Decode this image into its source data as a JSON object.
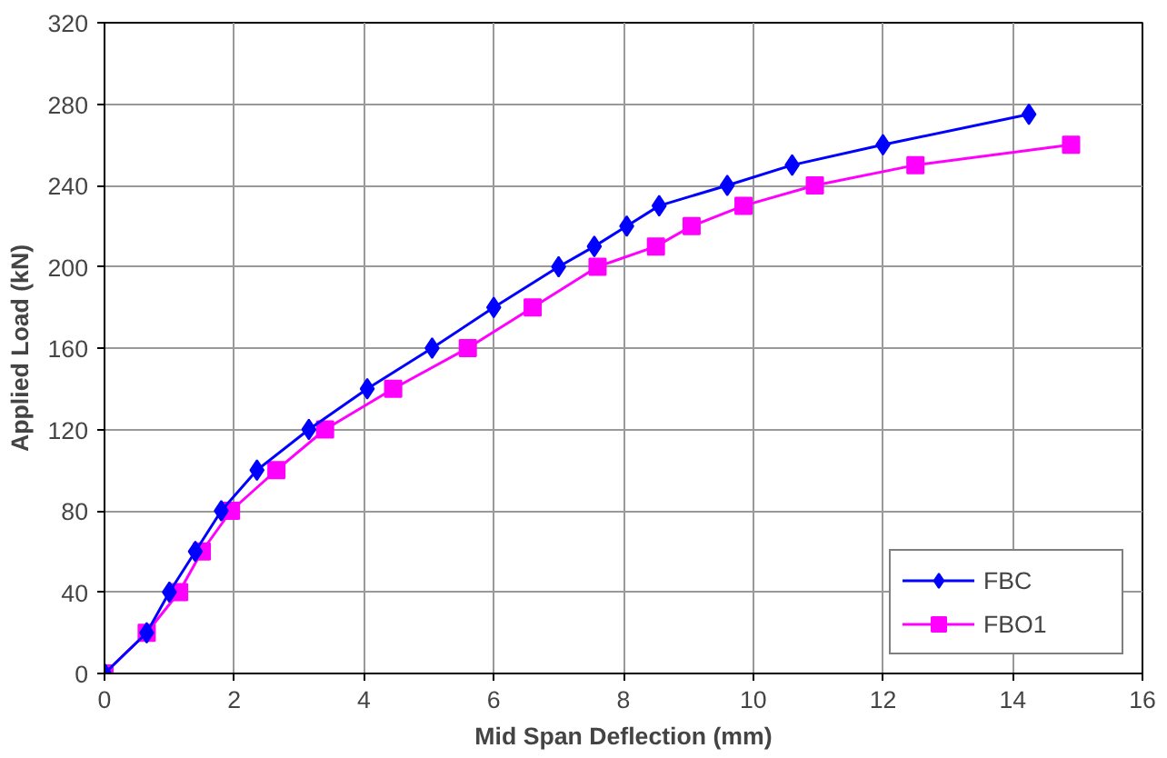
{
  "chart_data": {
    "type": "line",
    "xlabel": "Mid Span Deflection (mm)",
    "ylabel": "Applied Load (kN)",
    "xlim": [
      0,
      16
    ],
    "xticks": [
      0,
      2,
      4,
      6,
      8,
      10,
      12,
      14,
      16
    ],
    "ylim": [
      0,
      320
    ],
    "yticks": [
      0,
      40,
      80,
      120,
      160,
      200,
      240,
      280,
      320
    ],
    "grid": true,
    "legend": "bottom right",
    "series": [
      {
        "name": "FBC",
        "color": "#0000ff",
        "marker": "diamond",
        "x": [
          0,
          0.65,
          1.0,
          1.4,
          1.8,
          2.35,
          3.15,
          4.05,
          5.05,
          6.0,
          7.0,
          7.55,
          8.05,
          8.55,
          9.6,
          10.6,
          12.0,
          14.25
        ],
        "values": [
          0,
          20,
          40,
          60,
          80,
          100,
          120,
          140,
          160,
          180,
          200,
          210,
          220,
          230,
          240,
          250,
          260,
          275
        ]
      },
      {
        "name": "FBO1",
        "color": "#ff00ff",
        "marker": "square",
        "x": [
          0,
          0.65,
          1.15,
          1.5,
          1.95,
          2.65,
          3.4,
          4.45,
          5.6,
          6.6,
          7.6,
          8.5,
          9.05,
          9.85,
          10.95,
          12.5,
          14.9
        ],
        "values": [
          0,
          20,
          40,
          60,
          80,
          100,
          120,
          140,
          160,
          180,
          200,
          210,
          220,
          230,
          240,
          250,
          260
        ]
      }
    ]
  }
}
